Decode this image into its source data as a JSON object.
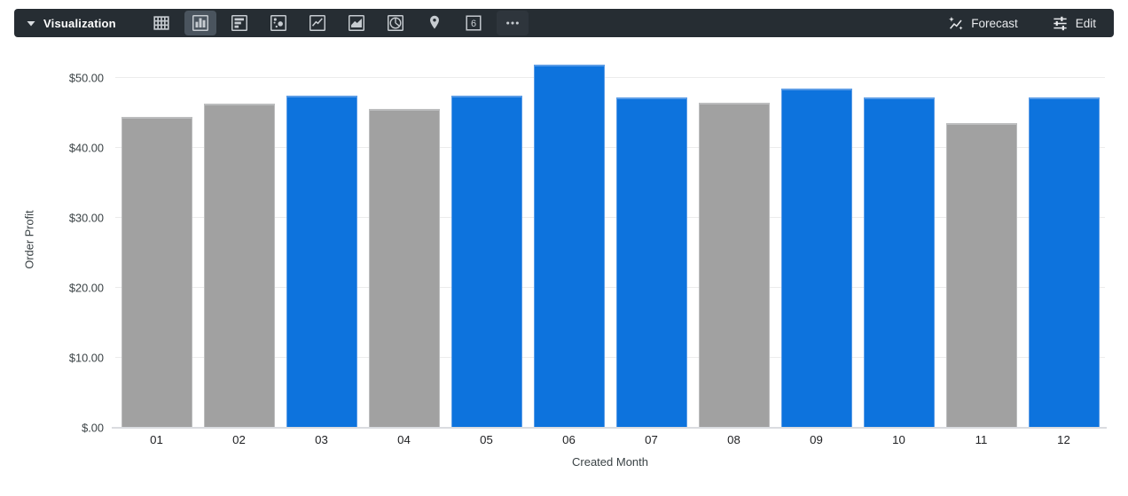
{
  "toolbar": {
    "title": "Visualization",
    "caret_icon": "caret-down",
    "viz_types": [
      {
        "name": "table",
        "icon": "table-icon",
        "selected": false
      },
      {
        "name": "column",
        "icon": "column-chart-icon",
        "selected": true
      },
      {
        "name": "bar",
        "icon": "bar-chart-icon",
        "selected": false
      },
      {
        "name": "scatter",
        "icon": "scatter-plot-icon",
        "selected": false
      },
      {
        "name": "line",
        "icon": "line-chart-icon",
        "selected": false
      },
      {
        "name": "area",
        "icon": "area-chart-icon",
        "selected": false
      },
      {
        "name": "pie",
        "icon": "pie-chart-icon",
        "selected": false
      },
      {
        "name": "map",
        "icon": "map-pin-icon",
        "selected": false
      },
      {
        "name": "single-value",
        "icon": "single-value-icon",
        "selected": false,
        "glyph": "6"
      },
      {
        "name": "more",
        "icon": "ellipsis-icon",
        "selected": false
      }
    ],
    "forecast_label": "Forecast",
    "edit_label": "Edit"
  },
  "colors": {
    "toolbar_bg": "#262d33",
    "selected_icon_bg": "#4a545e",
    "icon_stroke": "#c7ccd1",
    "bar_blue": "#0d73dd",
    "bar_blue_edge": "#5b9ce6",
    "bar_gray": "#a1a1a1",
    "bar_gray_edge": "#bcbdbe",
    "gridline": "#ececec",
    "axis_line": "#dadce0"
  },
  "chart_data": {
    "type": "bar",
    "title": "",
    "xlabel": "Created Month",
    "ylabel": "Order Profit",
    "categories": [
      "01",
      "02",
      "03",
      "04",
      "05",
      "06",
      "07",
      "08",
      "09",
      "10",
      "11",
      "12"
    ],
    "values": [
      44.4,
      46.3,
      47.4,
      45.5,
      47.4,
      51.8,
      47.1,
      46.4,
      48.4,
      47.1,
      43.5,
      47.1
    ],
    "bar_colors": [
      "gray",
      "gray",
      "blue",
      "gray",
      "blue",
      "blue",
      "blue",
      "gray",
      "blue",
      "blue",
      "gray",
      "blue"
    ],
    "ylim": [
      0,
      55
    ],
    "yticks": [
      0,
      10,
      20,
      30,
      40,
      50
    ],
    "ytick_labels": [
      "$.00",
      "$10.00",
      "$20.00",
      "$30.00",
      "$40.00",
      "$50.00"
    ],
    "grid": true,
    "legend": false,
    "currency": "$"
  }
}
